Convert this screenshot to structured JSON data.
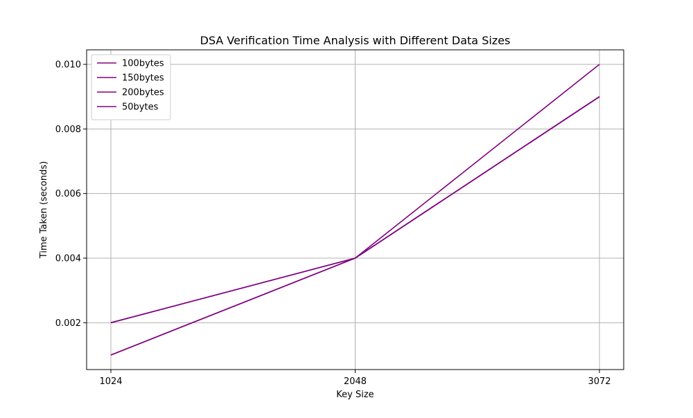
{
  "chart_data": {
    "type": "line",
    "title": "DSA Verification Time Analysis with Different Data Sizes",
    "xlabel": "Key Size",
    "ylabel": "Time Taken (seconds)",
    "x": [
      1024,
      2048,
      3072
    ],
    "x_tick_labels": [
      "1024",
      "2048",
      "3072"
    ],
    "y_ticks": [
      0.002,
      0.004,
      0.006,
      0.008,
      0.01
    ],
    "y_tick_labels": [
      "0.002",
      "0.004",
      "0.006",
      "0.008",
      "0.010"
    ],
    "ylim": [
      0.00055,
      0.01045
    ],
    "grid": true,
    "legend_position": "top-left",
    "series": [
      {
        "name": "100bytes",
        "values": [
          0.002,
          0.004,
          0.009
        ],
        "color": "#800080"
      },
      {
        "name": "150bytes",
        "values": [
          0.001,
          0.004,
          0.009
        ],
        "color": "#800080"
      },
      {
        "name": "200bytes",
        "values": [
          0.002,
          0.004,
          0.009
        ],
        "color": "#800080"
      },
      {
        "name": "50bytes",
        "values": [
          0.001,
          0.004,
          0.01
        ],
        "color": "#800080"
      }
    ]
  }
}
